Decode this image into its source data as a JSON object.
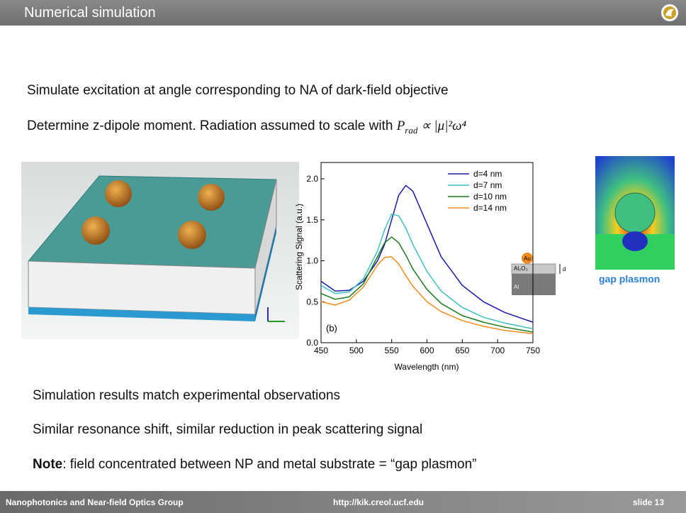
{
  "header": {
    "title": "Numerical simulation"
  },
  "body": {
    "line1": "Simulate excitation at angle corresponding to NA of dark-field objective",
    "line2": "Determine z-dipole moment.  Radiation assumed to scale with",
    "formula_main": "P",
    "formula_sub": "rad",
    "formula_tail": "∝ |μ|²ω⁴",
    "line3": "Simulation results match experimental observations",
    "line4": "Similar resonance shift, similar reduction in peak scattering signal",
    "note_label": "Note",
    "note_text": ":  field concentrated between NP and metal substrate  =  “gap plasmon”",
    "image_caption": "gap plasmon"
  },
  "footer": {
    "left": "Nanophotonics and Near-field Optics Group",
    "center": "http://kik.creol.ucf.edu",
    "right": "slide 13"
  },
  "chart_data": {
    "type": "line",
    "x_label": "Wavelength (nm)",
    "y_label": "Scattering Signal (a.u.)",
    "annotation": "(b)",
    "inset_labels": [
      "Au",
      "Al₂O₃",
      "d",
      "Al"
    ],
    "x": [
      450,
      470,
      490,
      510,
      530,
      540,
      550,
      560,
      570,
      580,
      600,
      620,
      650,
      680,
      710,
      750
    ],
    "series": [
      {
        "name": "d=4 nm",
        "color": "#1a1aa8",
        "values": [
          0.75,
          0.63,
          0.64,
          0.75,
          1.0,
          1.2,
          1.5,
          1.8,
          1.92,
          1.85,
          1.45,
          1.05,
          0.7,
          0.5,
          0.37,
          0.25
        ]
      },
      {
        "name": "d=7 nm",
        "color": "#3fbfbf",
        "values": [
          0.7,
          0.6,
          0.62,
          0.78,
          1.12,
          1.38,
          1.57,
          1.55,
          1.4,
          1.2,
          0.87,
          0.63,
          0.43,
          0.31,
          0.24,
          0.17
        ]
      },
      {
        "name": "d=10 nm",
        "color": "#1a7a1a",
        "values": [
          0.6,
          0.53,
          0.56,
          0.72,
          1.05,
          1.22,
          1.29,
          1.22,
          1.07,
          0.9,
          0.65,
          0.48,
          0.33,
          0.25,
          0.19,
          0.13
        ]
      },
      {
        "name": "d=14 nm",
        "color": "#f08c1e",
        "values": [
          0.5,
          0.46,
          0.52,
          0.68,
          0.95,
          1.04,
          1.05,
          0.96,
          0.82,
          0.69,
          0.5,
          0.38,
          0.27,
          0.2,
          0.15,
          0.11
        ]
      }
    ],
    "xlim": [
      450,
      750
    ],
    "ylim": [
      0,
      2.2
    ],
    "xticks": [
      450,
      500,
      550,
      600,
      650,
      700,
      750
    ],
    "yticks": [
      {
        "value": 0,
        "label": "0.0"
      },
      0.5,
      {
        "value": 1,
        "label": "1.0"
      },
      1.5,
      {
        "value": 2,
        "label": "2.0"
      }
    ],
    "legend": "upper right",
    "grid": false
  }
}
